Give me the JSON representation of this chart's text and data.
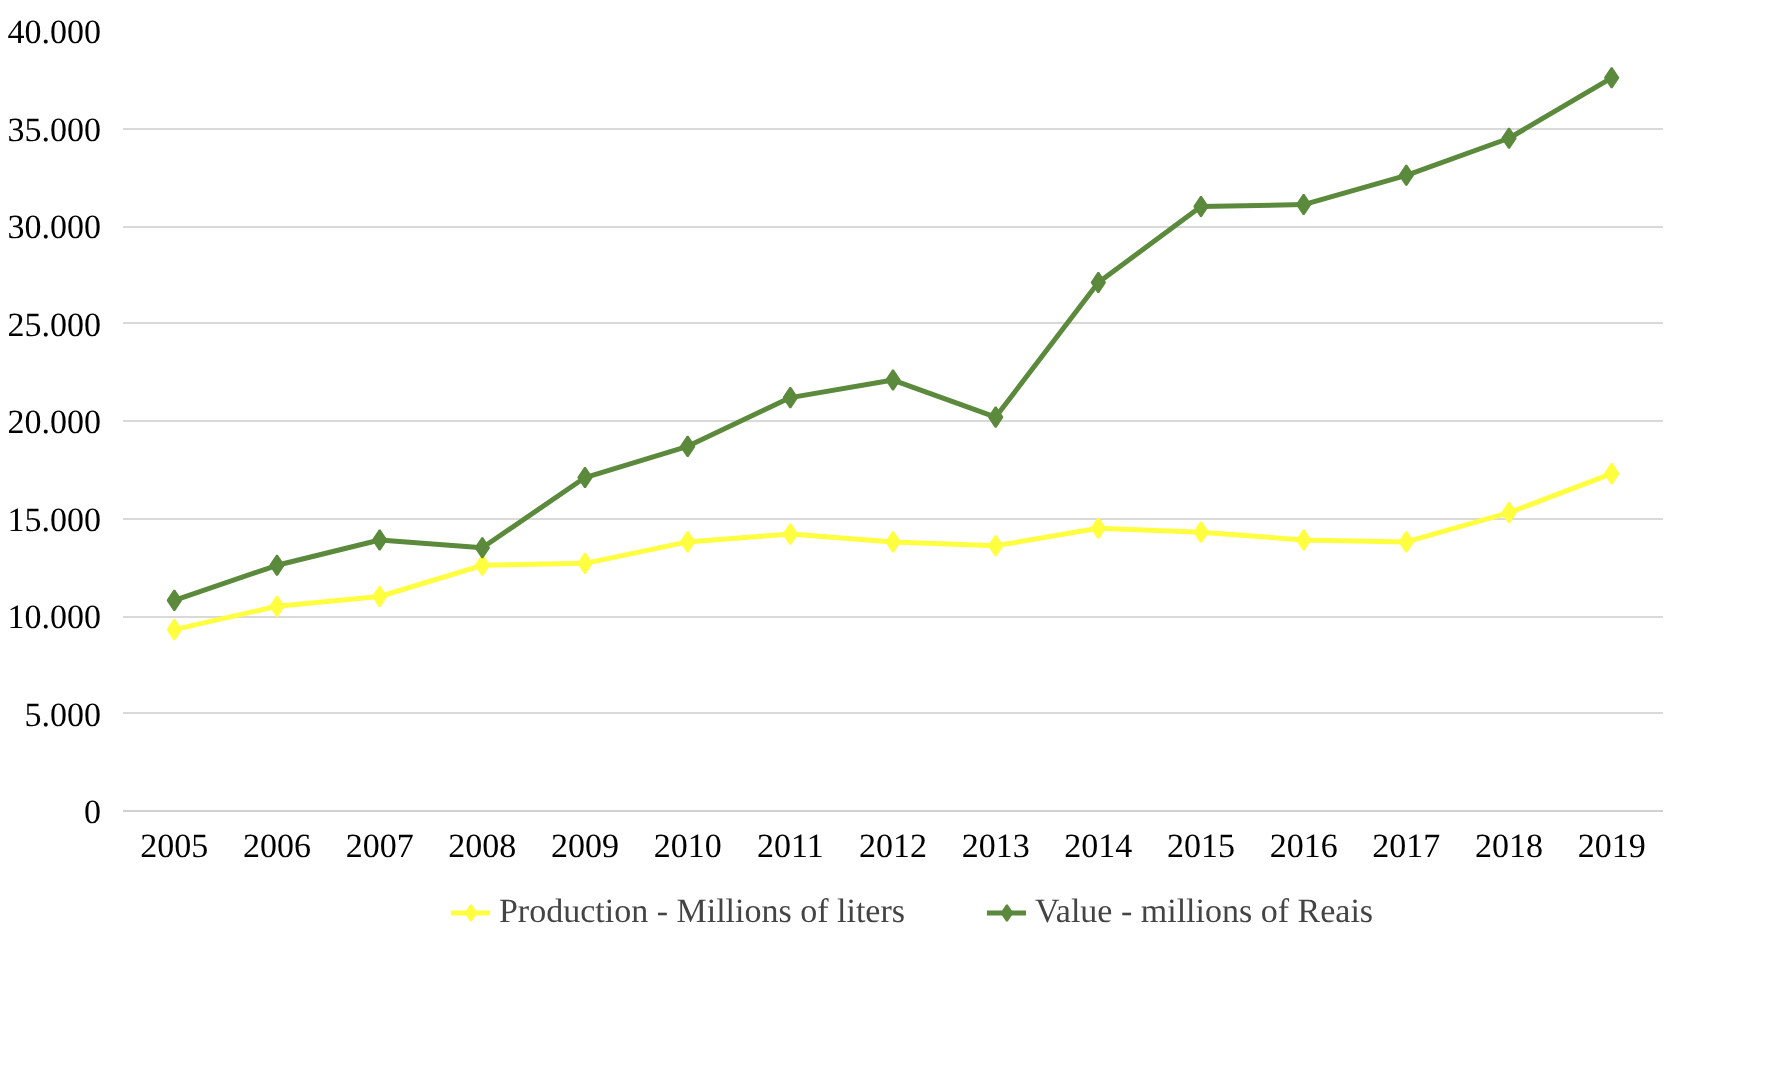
{
  "chart_data": {
    "type": "line",
    "categories": [
      "2005",
      "2006",
      "2007",
      "2008",
      "2009",
      "2010",
      "2011",
      "2012",
      "2013",
      "2014",
      "2015",
      "2016",
      "2017",
      "2018",
      "2019"
    ],
    "series": [
      {
        "name": "Production - Millions of liters",
        "color": "#ffff40",
        "values": [
          9300,
          10500,
          11000,
          12600,
          12700,
          13800,
          14200,
          13800,
          13600,
          14500,
          14300,
          13900,
          13800,
          15300,
          17300
        ]
      },
      {
        "name": "Value - millions of Reais",
        "color": "#5b8a3c",
        "values": [
          10800,
          12600,
          13900,
          13500,
          17100,
          18700,
          21200,
          22100,
          20200,
          27100,
          31000,
          31100,
          32600,
          34500,
          37600
        ]
      }
    ],
    "ylim": [
      0,
      40000
    ],
    "yticks": [
      {
        "value": 0,
        "label": "0"
      },
      {
        "value": 5000,
        "label": "5.000"
      },
      {
        "value": 10000,
        "label": "10.000"
      },
      {
        "value": 15000,
        "label": "15.000"
      },
      {
        "value": 20000,
        "label": "20.000"
      },
      {
        "value": 25000,
        "label": "25.000"
      },
      {
        "value": 30000,
        "label": "30.000"
      },
      {
        "value": 35000,
        "label": "35.000"
      },
      {
        "value": 40000,
        "label": "40.000"
      }
    ],
    "grid": "y",
    "legend": "bottom",
    "marker": "diamond",
    "line_style": "solid"
  }
}
